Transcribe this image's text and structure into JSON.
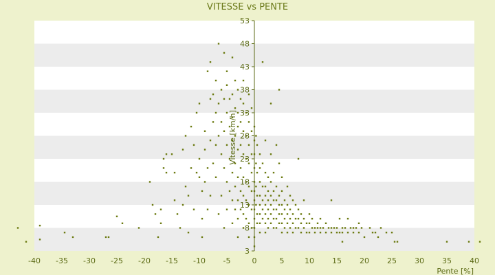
{
  "chart_data": {
    "type": "scatter",
    "title": "VITESSE vs PENTE",
    "xlabel": "Pente [%]",
    "ylabel": "Vitesse [km/h]",
    "xlim": [
      -40,
      40
    ],
    "ylim": [
      3,
      53
    ],
    "x_ticks": [
      "-40",
      "-35",
      "-30",
      "-25",
      "-20",
      "-15",
      "-10",
      "-5",
      "0",
      "5",
      "10",
      "15",
      "20",
      "25",
      "30",
      "35",
      "40"
    ],
    "y_ticks": [
      "53",
      "48",
      "43",
      "38",
      "33",
      "28",
      "23",
      "18",
      "13",
      "8",
      "3"
    ],
    "grid": true,
    "legend": "none",
    "colors": {
      "point": "#6b7a10",
      "band_light": "#ffffff",
      "band_dark": "#ececec",
      "axis": "#5b6a14"
    },
    "series": [
      {
        "points": [
          [
            -43,
            8
          ],
          [
            -41.5,
            5
          ],
          [
            -39,
            5.5
          ],
          [
            -39,
            8.5
          ],
          [
            -34.5,
            7
          ],
          [
            -33,
            6
          ],
          [
            -27,
            6
          ],
          [
            -26.5,
            6
          ],
          [
            -25,
            10.5
          ],
          [
            -24,
            9
          ],
          [
            -21,
            8
          ],
          [
            -19,
            18
          ],
          [
            -18.5,
            13
          ],
          [
            -18,
            11
          ],
          [
            -17.5,
            6
          ],
          [
            -17,
            12
          ],
          [
            -17,
            9
          ],
          [
            -16.5,
            21
          ],
          [
            -16.5,
            23
          ],
          [
            -16,
            24
          ],
          [
            -16,
            20
          ],
          [
            -15,
            24
          ],
          [
            -14.5,
            20
          ],
          [
            -14.5,
            14
          ],
          [
            -14,
            11
          ],
          [
            -13.5,
            8
          ],
          [
            -13,
            25
          ],
          [
            -13,
            13
          ],
          [
            -12.5,
            28
          ],
          [
            -12.5,
            17
          ],
          [
            -12,
            15
          ],
          [
            -12,
            7
          ],
          [
            -11.5,
            21
          ],
          [
            -11.5,
            30
          ],
          [
            -11,
            12
          ],
          [
            -11,
            26
          ],
          [
            -10.5,
            33
          ],
          [
            -10.5,
            20
          ],
          [
            -10,
            35
          ],
          [
            -10,
            19
          ],
          [
            -10,
            23
          ],
          [
            -9.5,
            16
          ],
          [
            -9.5,
            10
          ],
          [
            -9.5,
            6
          ],
          [
            -9,
            29
          ],
          [
            -9,
            18
          ],
          [
            -9,
            25
          ],
          [
            -8.5,
            42
          ],
          [
            -8.5,
            21
          ],
          [
            -8.5,
            12
          ],
          [
            -8,
            44
          ],
          [
            -8,
            27
          ],
          [
            -8,
            36
          ],
          [
            -8,
            15
          ],
          [
            -7.5,
            31
          ],
          [
            -7.5,
            37
          ],
          [
            -7.5,
            22
          ],
          [
            -7,
            40
          ],
          [
            -7,
            26
          ],
          [
            -7,
            19
          ],
          [
            -7,
            33
          ],
          [
            -6.5,
            48
          ],
          [
            -6.5,
            35
          ],
          [
            -6.5,
            28
          ],
          [
            -6.5,
            11
          ],
          [
            -6,
            38
          ],
          [
            -6,
            24
          ],
          [
            -6,
            31
          ],
          [
            -6,
            15
          ],
          [
            -5.5,
            46
          ],
          [
            -5.5,
            36
          ],
          [
            -5.5,
            29
          ],
          [
            -5.5,
            21
          ],
          [
            -5.5,
            8
          ],
          [
            -5,
            42
          ],
          [
            -5,
            39
          ],
          [
            -5,
            33
          ],
          [
            -5,
            26
          ],
          [
            -5,
            18
          ],
          [
            -5,
            12
          ],
          [
            -4.5,
            36
          ],
          [
            -4.5,
            30
          ],
          [
            -4.5,
            23
          ],
          [
            -4.5,
            16
          ],
          [
            -4,
            45
          ],
          [
            -4,
            37
          ],
          [
            -4,
            32
          ],
          [
            -4,
            27
          ],
          [
            -4,
            20
          ],
          [
            -4,
            14
          ],
          [
            -4,
            9
          ],
          [
            -3.5,
            40
          ],
          [
            -3.5,
            34
          ],
          [
            -3.5,
            28
          ],
          [
            -3.5,
            22
          ],
          [
            -3.5,
            17
          ],
          [
            -3.5,
            12
          ],
          [
            -3,
            38
          ],
          [
            -3,
            33
          ],
          [
            -3,
            30
          ],
          [
            -3,
            25
          ],
          [
            -3,
            19
          ],
          [
            -3,
            14
          ],
          [
            -3,
            10
          ],
          [
            -3,
            6
          ],
          [
            -2.5,
            36
          ],
          [
            -2.5,
            31
          ],
          [
            -2.5,
            26
          ],
          [
            -2.5,
            21
          ],
          [
            -2.5,
            16
          ],
          [
            -2.5,
            12
          ],
          [
            -2,
            40
          ],
          [
            -2,
            35
          ],
          [
            -2,
            29
          ],
          [
            -2,
            24
          ],
          [
            -2,
            19
          ],
          [
            -2,
            15
          ],
          [
            -2,
            11
          ],
          [
            -2,
            8
          ],
          [
            -1.5,
            33
          ],
          [
            -1.5,
            28
          ],
          [
            -1.5,
            23
          ],
          [
            -1.5,
            18
          ],
          [
            -1.5,
            14
          ],
          [
            -1.5,
            10
          ],
          [
            -1,
            37
          ],
          [
            -1,
            31
          ],
          [
            -1,
            26
          ],
          [
            -1,
            22
          ],
          [
            -1,
            17
          ],
          [
            -1,
            13
          ],
          [
            -1,
            9
          ],
          [
            -1,
            6
          ],
          [
            -0.5,
            34
          ],
          [
            -0.5,
            29
          ],
          [
            -0.5,
            24
          ],
          [
            -0.5,
            20
          ],
          [
            -0.5,
            16
          ],
          [
            -0.5,
            12
          ],
          [
            -0.5,
            8
          ],
          [
            0,
            30
          ],
          [
            0,
            27
          ],
          [
            0,
            24
          ],
          [
            0,
            21
          ],
          [
            0,
            18
          ],
          [
            0,
            16
          ],
          [
            0,
            14
          ],
          [
            0,
            12
          ],
          [
            0,
            10
          ],
          [
            0,
            8
          ],
          [
            0,
            6
          ],
          [
            0,
            4
          ],
          [
            0.3,
            28
          ],
          [
            0.3,
            22
          ],
          [
            0.3,
            17
          ],
          [
            0.3,
            13
          ],
          [
            0.5,
            26
          ],
          [
            0.5,
            20
          ],
          [
            0.5,
            15
          ],
          [
            0.5,
            11
          ],
          [
            0.5,
            9
          ],
          [
            1,
            24
          ],
          [
            1,
            21
          ],
          [
            1,
            18
          ],
          [
            1,
            15
          ],
          [
            1,
            13
          ],
          [
            1,
            11
          ],
          [
            1,
            9
          ],
          [
            1,
            7
          ],
          [
            1.5,
            44
          ],
          [
            1.5,
            22
          ],
          [
            1.5,
            17
          ],
          [
            1.5,
            14
          ],
          [
            1.5,
            12
          ],
          [
            1.5,
            10
          ],
          [
            2,
            27
          ],
          [
            2,
            20
          ],
          [
            2,
            17
          ],
          [
            2,
            15
          ],
          [
            2,
            13
          ],
          [
            2,
            11
          ],
          [
            2,
            9
          ],
          [
            2,
            7
          ],
          [
            2.5,
            19
          ],
          [
            2.5,
            16
          ],
          [
            2.5,
            14
          ],
          [
            2.5,
            12
          ],
          [
            2.5,
            10
          ],
          [
            2.5,
            8
          ],
          [
            3,
            35
          ],
          [
            3,
            24
          ],
          [
            3,
            18
          ],
          [
            3,
            15
          ],
          [
            3,
            13
          ],
          [
            3,
            11
          ],
          [
            3,
            9
          ],
          [
            3.5,
            20
          ],
          [
            3.5,
            16
          ],
          [
            3.5,
            14
          ],
          [
            3.5,
            12
          ],
          [
            3.5,
            10
          ],
          [
            3.5,
            8
          ],
          [
            4,
            26
          ],
          [
            4,
            17
          ],
          [
            4,
            14
          ],
          [
            4,
            12
          ],
          [
            4,
            10
          ],
          [
            4,
            8
          ],
          [
            4.5,
            38
          ],
          [
            4.5,
            22
          ],
          [
            4.5,
            15
          ],
          [
            4.5,
            13
          ],
          [
            4.5,
            11
          ],
          [
            4.5,
            9
          ],
          [
            5,
            19
          ],
          [
            5,
            16
          ],
          [
            5,
            13
          ],
          [
            5,
            11
          ],
          [
            5,
            9
          ],
          [
            5,
            7
          ],
          [
            5.5,
            14
          ],
          [
            5.5,
            12
          ],
          [
            5.5,
            10
          ],
          [
            5.5,
            8
          ],
          [
            6,
            17
          ],
          [
            6,
            13
          ],
          [
            6,
            11
          ],
          [
            6,
            9
          ],
          [
            6,
            7
          ],
          [
            6.5,
            15
          ],
          [
            6.5,
            12
          ],
          [
            6.5,
            10
          ],
          [
            6.5,
            8
          ],
          [
            7,
            14
          ],
          [
            7,
            11
          ],
          [
            7,
            9
          ],
          [
            7,
            7
          ],
          [
            7.5,
            13
          ],
          [
            7.5,
            10
          ],
          [
            7.5,
            8
          ],
          [
            8,
            23
          ],
          [
            8,
            12
          ],
          [
            8,
            10
          ],
          [
            8,
            8
          ],
          [
            8.5,
            11
          ],
          [
            8.5,
            9
          ],
          [
            8.5,
            7
          ],
          [
            9,
            14
          ],
          [
            9,
            10
          ],
          [
            9,
            8
          ],
          [
            9.5,
            9
          ],
          [
            9.5,
            7
          ],
          [
            10,
            11
          ],
          [
            10,
            9
          ],
          [
            10,
            7
          ],
          [
            10.5,
            8
          ],
          [
            10.5,
            10
          ],
          [
            11,
            8
          ],
          [
            11,
            7
          ],
          [
            11.5,
            9
          ],
          [
            11.5,
            8
          ],
          [
            12,
            10
          ],
          [
            12,
            8
          ],
          [
            12,
            7
          ],
          [
            12.5,
            8
          ],
          [
            13,
            7
          ],
          [
            13,
            9
          ],
          [
            13.5,
            8
          ],
          [
            14,
            7
          ],
          [
            14,
            8
          ],
          [
            14,
            14
          ],
          [
            14.5,
            8
          ],
          [
            15,
            7
          ],
          [
            15,
            8
          ],
          [
            15.5,
            7
          ],
          [
            15.5,
            10
          ],
          [
            16,
            8
          ],
          [
            16,
            7
          ],
          [
            16,
            5
          ],
          [
            16.5,
            8
          ],
          [
            17,
            7
          ],
          [
            17,
            10
          ],
          [
            17.5,
            8
          ],
          [
            18,
            7
          ],
          [
            18,
            8
          ],
          [
            18.5,
            8
          ],
          [
            19,
            7
          ],
          [
            19,
            9
          ],
          [
            19.5,
            8
          ],
          [
            20,
            6
          ],
          [
            21,
            8
          ],
          [
            21.5,
            7
          ],
          [
            22,
            7
          ],
          [
            22.5,
            6
          ],
          [
            23,
            8
          ],
          [
            24,
            7
          ],
          [
            25,
            7
          ],
          [
            25.5,
            5
          ],
          [
            26,
            5
          ],
          [
            35,
            5
          ],
          [
            39,
            5
          ],
          [
            41,
            5
          ]
        ]
      }
    ]
  }
}
